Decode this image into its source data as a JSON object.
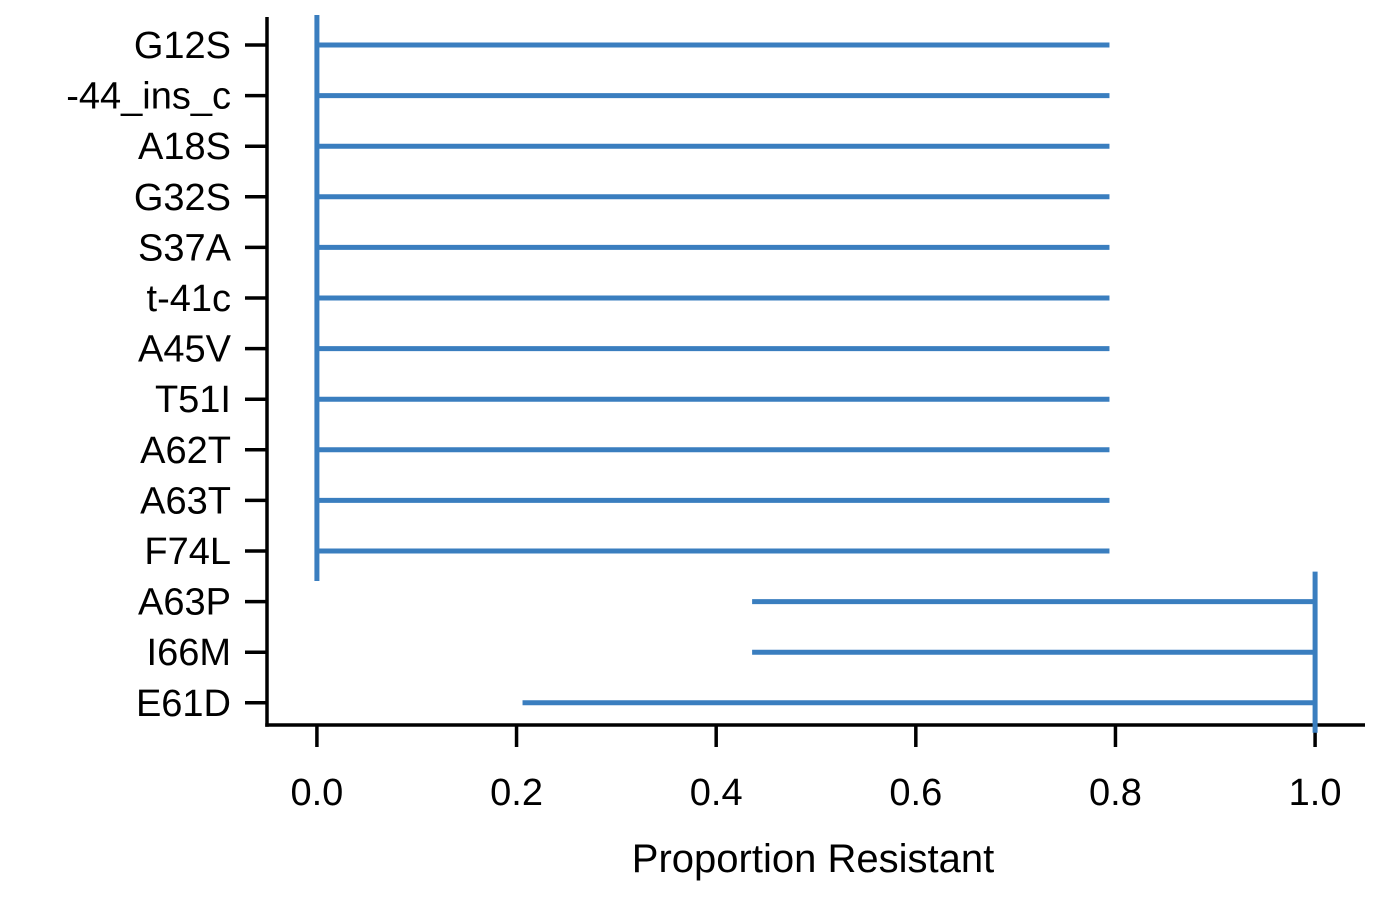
{
  "chart_data": {
    "type": "interval",
    "title": "",
    "xlabel": "Proportion Resistant",
    "ylabel": "",
    "xlim": [
      -0.05,
      1.05
    ],
    "xticks": [
      0.0,
      0.2,
      0.4,
      0.6,
      0.8,
      1.0
    ],
    "xtick_labels": [
      "0.0",
      "0.2",
      "0.4",
      "0.6",
      "0.8",
      "1.0"
    ],
    "grid": false,
    "legend": false,
    "color": "#3a7ebf",
    "categories": [
      "G12S",
      "-44_ins_c",
      "A18S",
      "G32S",
      "S37A",
      "t-41c",
      "A45V",
      "T51I",
      "A62T",
      "A63T",
      "F74L",
      "A63P",
      "I66M",
      "E61D"
    ],
    "intervals": [
      {
        "label": "G12S",
        "low": 0.0,
        "high": 0.794
      },
      {
        "label": "-44_ins_c",
        "low": 0.0,
        "high": 0.794
      },
      {
        "label": "A18S",
        "low": 0.0,
        "high": 0.794
      },
      {
        "label": "G32S",
        "low": 0.0,
        "high": 0.794
      },
      {
        "label": "S37A",
        "low": 0.0,
        "high": 0.794
      },
      {
        "label": "t-41c",
        "low": 0.0,
        "high": 0.794
      },
      {
        "label": "A45V",
        "low": 0.0,
        "high": 0.794
      },
      {
        "label": "T51I",
        "low": 0.0,
        "high": 0.794
      },
      {
        "label": "A62T",
        "low": 0.0,
        "high": 0.794
      },
      {
        "label": "A63T",
        "low": 0.0,
        "high": 0.794
      },
      {
        "label": "F74L",
        "low": 0.0,
        "high": 0.794
      },
      {
        "label": "A63P",
        "low": 0.436,
        "high": 1.0
      },
      {
        "label": "I66M",
        "low": 0.436,
        "high": 1.0
      },
      {
        "label": "E61D",
        "low": 0.206,
        "high": 1.0
      }
    ],
    "point_markers": [
      {
        "x": 0.0,
        "from": "G12S",
        "to": "F74L"
      },
      {
        "x": 1.0,
        "from": "A63P",
        "to": "E61D"
      }
    ]
  }
}
